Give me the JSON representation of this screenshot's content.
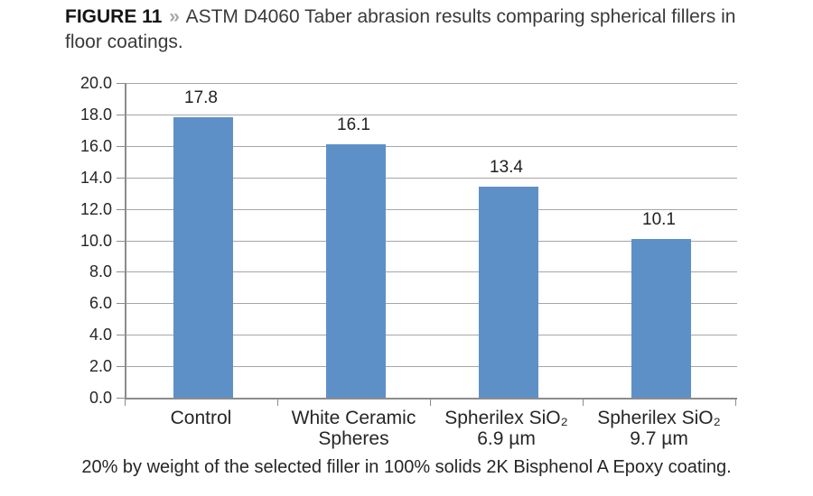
{
  "figure": {
    "label": "FIGURE 11",
    "separator": "»",
    "title": "ASTM D4060 Taber abrasion results comparing spherical fillers in floor coatings.",
    "footnote": "20% by weight of the selected filler in 100% solids 2K Bisphenol A Epoxy coating."
  },
  "chart_data": {
    "type": "bar",
    "title": "ASTM D4060 Taber abrasion results comparing spherical fillers in floor coatings.",
    "categories": [
      "Control",
      "White Ceramic\nSpheres",
      "Spherilex SiO₂\n6.9 µm",
      "Spherilex SiO₂\n9.7 µm"
    ],
    "values": [
      17.8,
      16.1,
      13.4,
      10.1
    ],
    "value_labels": [
      "17.8",
      "16.1",
      "13.4",
      "10.1"
    ],
    "xlabel": "",
    "ylabel": "",
    "ylim": [
      0,
      20
    ],
    "ytick_step": 2,
    "ytick_labels": [
      "0.0",
      "2.0",
      "4.0",
      "6.0",
      "8.0",
      "10.0",
      "12.0",
      "14.0",
      "16.0",
      "18.0",
      "20.0"
    ],
    "grid": true,
    "legend": false,
    "colors": {
      "bar": "#5E90C8",
      "gridline": "#a6a6a6",
      "axis": "#8c8c8c",
      "text": "#262626"
    }
  }
}
